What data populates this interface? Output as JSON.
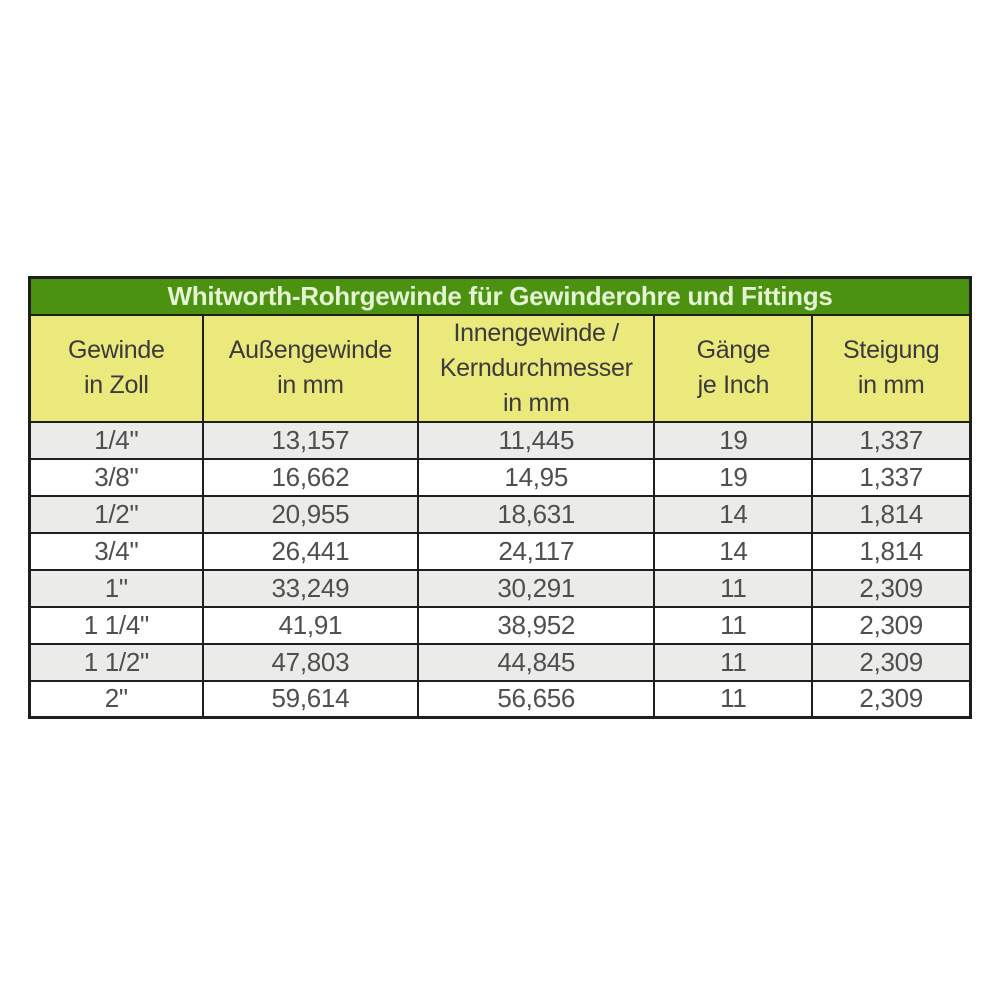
{
  "chart_data": {
    "type": "table",
    "title": "Whitworth-Rohrgewinde für Gewinderohre und Fittings",
    "columns": [
      "Gewinde\nin Zoll",
      "Außengewinde\nin mm",
      "Innengewinde /\nKerndurchmesser\nin mm",
      "Gänge\nje Inch",
      "Steigung\nin mm"
    ],
    "rows": [
      [
        "1/4\"",
        "13,157",
        "11,445",
        "19",
        "1,337"
      ],
      [
        "3/8\"",
        "16,662",
        "14,95",
        "19",
        "1,337"
      ],
      [
        "1/2\"",
        "20,955",
        "18,631",
        "14",
        "1,814"
      ],
      [
        "3/4\"",
        "26,441",
        "24,117",
        "14",
        "1,814"
      ],
      [
        "1\"",
        "33,249",
        "30,291",
        "11",
        "2,309"
      ],
      [
        "1 1/4\"",
        "41,91",
        "38,952",
        "11",
        "2,309"
      ],
      [
        "1 1/2\"",
        "47,803",
        "44,845",
        "11",
        "2,309"
      ],
      [
        "2\"",
        "59,614",
        "56,656",
        "11",
        "2,309"
      ]
    ],
    "layout": {
      "grid": true,
      "alternating_row_shading": "odd rows shaded gray, starting with first data row"
    }
  },
  "colors": {
    "title_background": "#4b9210",
    "title_text": "#e4f3d3",
    "header_background": "#ebe87c",
    "header_text": "#3b3b3b",
    "row_alt_background": "#ebebe9",
    "row_background": "#ffffff",
    "data_text": "#4f4f4f",
    "border": "#1f1f1f",
    "page_background": "#ffffff"
  }
}
